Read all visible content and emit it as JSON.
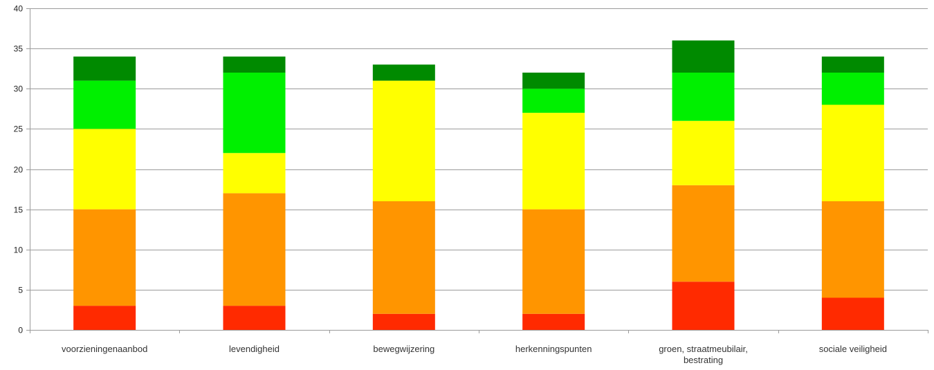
{
  "chart_data": {
    "type": "bar",
    "stacked": true,
    "title": "",
    "xlabel": "",
    "ylabel": "",
    "ylim": [
      0,
      40
    ],
    "yticks": [
      0,
      5,
      10,
      15,
      20,
      25,
      30,
      35,
      40
    ],
    "grid": true,
    "legend": "none",
    "categories": [
      "voorzieningenaanbod",
      "levendigheid",
      "bewegwijzering",
      "herkenningspunten",
      "groen, straatmeubilair, bestrating",
      "sociale veiligheid"
    ],
    "category_lines": [
      [
        "voorzieningenaanbod"
      ],
      [
        "levendigheid"
      ],
      [
        "bewegwijzering"
      ],
      [
        "herkenningspunten"
      ],
      [
        "groen, straatmeubilair,",
        "bestrating"
      ],
      [
        "sociale veiligheid"
      ]
    ],
    "series": [
      {
        "color": "#ff2a00",
        "values": [
          3,
          3,
          2,
          2,
          6,
          4
        ]
      },
      {
        "color": "#ff9500",
        "values": [
          12,
          14,
          14,
          13,
          12,
          12
        ]
      },
      {
        "color": "#ffff00",
        "values": [
          10,
          5,
          15,
          12,
          8,
          12
        ]
      },
      {
        "color": "#00f000",
        "values": [
          6,
          10,
          0,
          3,
          6,
          4
        ]
      },
      {
        "color": "#008a00",
        "values": [
          3,
          2,
          2,
          2,
          4,
          2
        ]
      }
    ]
  }
}
